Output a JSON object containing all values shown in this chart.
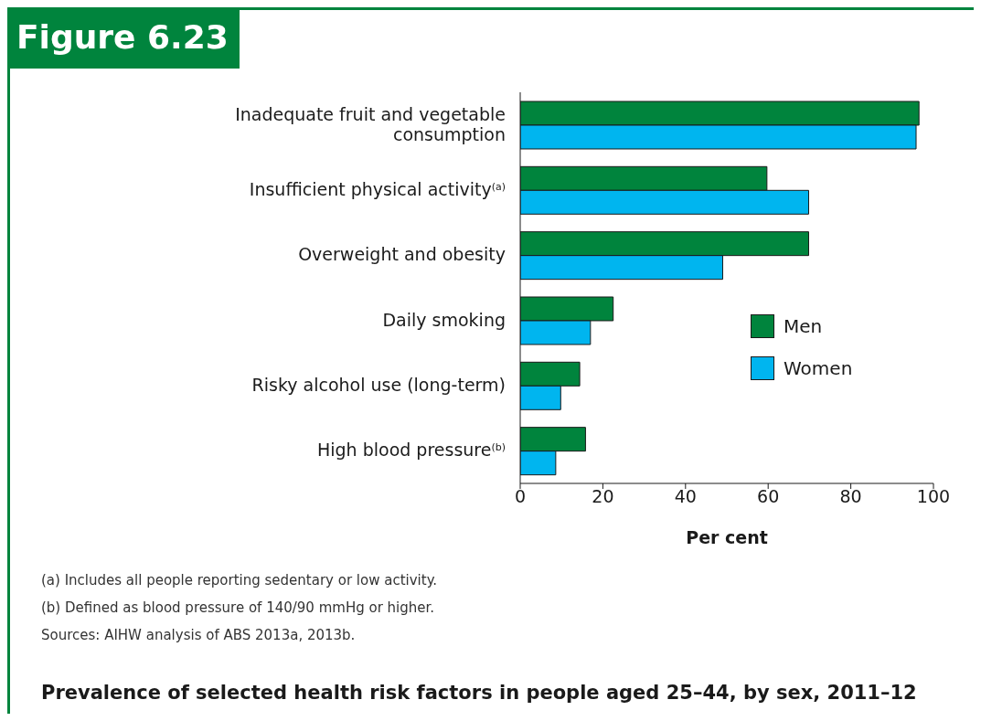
{
  "chart_data": {
    "type": "bar",
    "orientation": "horizontal",
    "title": "Figure 6.23",
    "subtitle": "Prevalence of selected health risk factors in people aged 25–44, by sex, 2011–12",
    "xlabel": "Per cent",
    "categories": [
      "Inadequate fruit and vegetable consumption",
      "Insufficient physical activity$^{(a)}$",
      "Overweight and obesity",
      "Daily smoking",
      "Risky alcohol use (long-term)",
      "High blood pressure$^{(b)}$"
    ],
    "series": [
      {
        "name": "Men",
        "color": "#00843d",
        "values": [
          96.5,
          59.7,
          69.8,
          22.5,
          14.4,
          15.8
        ]
      },
      {
        "name": "Women",
        "color": "#00b5ef",
        "values": [
          95.8,
          69.8,
          49,
          17,
          9.8,
          8.6
        ]
      }
    ],
    "xlim": [
      0,
      100
    ],
    "xticks": [
      0,
      20,
      40,
      60,
      80,
      100
    ],
    "legend": "right",
    "annotations": [
      "(a)  Includes all people reporting sedentary or low activity.",
      "(b)  Defined as blood pressure of 140/90 mmHg or higher.",
      "Sources: AIHW analysis of ABS 2013a, 2013b."
    ]
  }
}
